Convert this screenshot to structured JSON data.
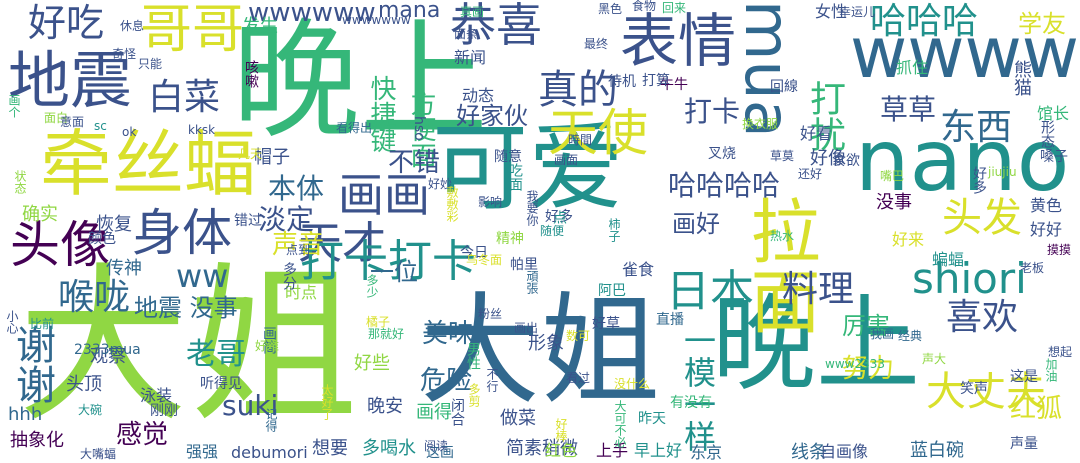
{
  "palette": {
    "purple": "#440154",
    "indigo": "#3b528b",
    "blue": "#31688e",
    "teal": "#21918c",
    "green": "#35b779",
    "lime": "#90d743",
    "yellow": "#d9e02b"
  },
  "words": [
    {
      "text": "大姐",
      "color": "lime"
    },
    {
      "text": "大姐",
      "color": "blue"
    },
    {
      "text": "晚上",
      "color": "green"
    },
    {
      "text": "晚上",
      "color": "teal"
    },
    {
      "text": "可爱",
      "color": "teal"
    },
    {
      "text": "nano",
      "color": "teal"
    },
    {
      "text": "wwww",
      "color": "blue"
    },
    {
      "text": "mua",
      "color": "blue"
    },
    {
      "text": "牵丝蝠",
      "color": "yellow"
    },
    {
      "text": "地震",
      "color": "indigo"
    },
    {
      "text": "拉面",
      "color": "yellow"
    },
    {
      "text": "表情",
      "color": "indigo"
    },
    {
      "text": "哥哥",
      "color": "yellow"
    },
    {
      "text": "头像",
      "color": "purple"
    },
    {
      "text": "身体",
      "color": "indigo"
    },
    {
      "text": "天才",
      "color": "indigo"
    },
    {
      "text": "画画",
      "color": "indigo"
    },
    {
      "text": "打卡打卡",
      "color": "teal"
    },
    {
      "text": "shiori",
      "color": "teal"
    },
    {
      "text": "头发",
      "color": "yellow"
    },
    {
      "text": "天使",
      "color": "yellow"
    },
    {
      "text": "恭喜",
      "color": "indigo"
    },
    {
      "text": "真的",
      "color": "indigo"
    },
    {
      "text": "好吃",
      "color": "indigo"
    },
    {
      "text": "白菜",
      "color": "indigo"
    },
    {
      "text": "日本",
      "color": "teal"
    },
    {
      "text": "料理",
      "color": "indigo"
    },
    {
      "text": "喜欢",
      "color": "indigo"
    },
    {
      "text": "大丈夫",
      "color": "yellow"
    },
    {
      "text": "哈哈哈",
      "color": "teal"
    },
    {
      "text": "东西",
      "color": "blue"
    },
    {
      "text": "打扰",
      "color": "green"
    },
    {
      "text": "谢谢",
      "color": "blue"
    },
    {
      "text": "喉咙",
      "color": "blue"
    },
    {
      "text": "一模一样",
      "color": "teal"
    },
    {
      "text": "ww",
      "color": "blue"
    },
    {
      "text": "wwwwww",
      "color": "indigo"
    },
    {
      "text": "mana",
      "color": "indigo"
    },
    {
      "text": "学友",
      "color": "yellow"
    },
    {
      "text": "快捷键",
      "color": "green"
    },
    {
      "text": "方便面",
      "color": "green"
    },
    {
      "text": "好家伙",
      "color": "indigo"
    },
    {
      "text": "打卡",
      "color": "indigo"
    },
    {
      "text": "草草",
      "color": "indigo"
    },
    {
      "text": "哈哈哈哈",
      "color": "indigo"
    },
    {
      "text": "本体",
      "color": "blue"
    },
    {
      "text": "不错",
      "color": "indigo"
    },
    {
      "text": "声音",
      "color": "yellow"
    },
    {
      "text": "淡定",
      "color": "indigo"
    },
    {
      "text": "老哥",
      "color": "teal"
    },
    {
      "text": "美味",
      "color": "blue"
    },
    {
      "text": "危险",
      "color": "blue"
    },
    {
      "text": "厉害",
      "color": "green"
    },
    {
      "text": "努力",
      "color": "yellow"
    },
    {
      "text": "红狐",
      "color": "yellow"
    },
    {
      "text": "suki",
      "color": "indigo"
    },
    {
      "text": "感觉",
      "color": "purple"
    },
    {
      "text": "地震 没事",
      "color": "blue"
    },
    {
      "text": "画好",
      "color": "indigo"
    },
    {
      "text": "一位",
      "color": "blue"
    },
    {
      "text": "头顶",
      "color": "indigo"
    },
    {
      "text": "恢复",
      "color": "indigo"
    },
    {
      "text": "确实",
      "color": "lime"
    },
    {
      "text": "观察",
      "color": "indigo"
    },
    {
      "text": "晚安",
      "color": "indigo"
    },
    {
      "text": "画得",
      "color": "green"
    },
    {
      "text": "做菜",
      "color": "indigo"
    },
    {
      "text": "形象",
      "color": "indigo"
    },
    {
      "text": "好些",
      "color": "lime"
    },
    {
      "text": "多喝水",
      "color": "teal"
    },
    {
      "text": "简素稍微",
      "color": "indigo"
    },
    {
      "text": "抽象化",
      "color": "purple"
    },
    {
      "text": "想要",
      "color": "indigo"
    },
    {
      "text": "强强",
      "color": "blue"
    },
    {
      "text": "debumori",
      "color": "indigo"
    },
    {
      "text": "线条",
      "color": "blue"
    },
    {
      "text": "蓝白碗",
      "color": "blue"
    },
    {
      "text": "上手",
      "color": "purple"
    },
    {
      "text": "早上好",
      "color": "teal"
    },
    {
      "text": "这画",
      "color": "blue"
    },
    {
      "text": "红色",
      "color": "lime"
    },
    {
      "text": "东京",
      "color": "blue"
    },
    {
      "text": "自画像",
      "color": "indigo"
    },
    {
      "text": "声量",
      "color": "indigo"
    },
    {
      "text": "hhh",
      "color": "blue"
    },
    {
      "text": "2333mua",
      "color": "blue"
    },
    {
      "text": "泳装",
      "color": "indigo"
    },
    {
      "text": "刚刚",
      "color": "indigo"
    },
    {
      "text": "大碗",
      "color": "teal"
    },
    {
      "text": "听得见",
      "color": "indigo"
    },
    {
      "text": "记得",
      "color": "blue"
    },
    {
      "text": "太好了",
      "color": "yellow"
    },
    {
      "text": "多剪",
      "color": "yellow"
    },
    {
      "text": "好棒",
      "color": "yellow"
    },
    {
      "text": "昨天",
      "color": "teal"
    },
    {
      "text": "有没有",
      "color": "green"
    },
    {
      "text": "大嘴蝠",
      "color": "indigo"
    },
    {
      "text": "这是",
      "color": "indigo"
    },
    {
      "text": "笑声",
      "color": "indigo"
    },
    {
      "text": "想起",
      "color": "indigo"
    },
    {
      "text": "加油",
      "color": "green"
    },
    {
      "text": "声大",
      "color": "lime"
    },
    {
      "text": "经典",
      "color": "blue"
    },
    {
      "text": "我画",
      "color": "blue"
    },
    {
      "text": "帽子",
      "color": "indigo"
    },
    {
      "text": "没事",
      "color": "purple"
    },
    {
      "text": "黄色",
      "color": "indigo"
    },
    {
      "text": "好好",
      "color": "indigo"
    },
    {
      "text": "好来",
      "color": "yellow"
    },
    {
      "text": "蝙蝠",
      "color": "teal"
    },
    {
      "text": "老板",
      "color": "indigo"
    },
    {
      "text": "摸摸",
      "color": "purple"
    },
    {
      "text": "雀食",
      "color": "indigo"
    },
    {
      "text": "今日",
      "color": "indigo"
    },
    {
      "text": "帕里",
      "color": "indigo"
    },
    {
      "text": "好多",
      "color": "indigo"
    },
    {
      "text": "吃面",
      "color": "teal"
    },
    {
      "text": "时点",
      "color": "lime"
    },
    {
      "text": "粉丝",
      "color": "indigo"
    },
    {
      "text": "阿巴",
      "color": "teal"
    },
    {
      "text": "直播",
      "color": "blue"
    },
    {
      "text": "好草",
      "color": "indigo"
    },
    {
      "text": "画出",
      "color": "indigo"
    },
    {
      "text": "比前",
      "color": "teal"
    },
    {
      "text": "小心",
      "color": "indigo"
    },
    {
      "text": "传神",
      "color": "blue"
    },
    {
      "text": "颜色",
      "color": "indigo"
    },
    {
      "text": "错过",
      "color": "indigo"
    },
    {
      "text": "叉烧",
      "color": "indigo"
    },
    {
      "text": "好像",
      "color": "indigo"
    },
    {
      "text": "好看",
      "color": "indigo"
    },
    {
      "text": "草莫",
      "color": "indigo"
    },
    {
      "text": "食欲",
      "color": "indigo"
    },
    {
      "text": "还好",
      "color": "indigo"
    },
    {
      "text": "嘴巴",
      "color": "lime"
    },
    {
      "text": "熊猫",
      "color": "indigo"
    },
    {
      "text": "馆长",
      "color": "green"
    },
    {
      "text": "抓住",
      "color": "green"
    },
    {
      "text": "回線",
      "color": "indigo"
    },
    {
      "text": "牛牛",
      "color": "purple"
    },
    {
      "text": "打算",
      "color": "indigo"
    },
    {
      "text": "动态",
      "color": "indigo"
    },
    {
      "text": "新闻",
      "color": "indigo"
    },
    {
      "text": "面条",
      "color": "indigo"
    },
    {
      "text": "食物",
      "color": "indigo"
    },
    {
      "text": "女性",
      "color": "indigo"
    },
    {
      "text": "幸运儿",
      "color": "indigo"
    },
    {
      "text": "发生",
      "color": "green"
    },
    {
      "text": "wwwwwww",
      "color": "indigo"
    },
    {
      "text": "回来",
      "color": "green"
    },
    {
      "text": "真画",
      "color": "green"
    },
    {
      "text": "黑色",
      "color": "indigo"
    },
    {
      "text": "休息",
      "color": "indigo"
    },
    {
      "text": "只能",
      "color": "indigo"
    },
    {
      "text": "奇怪",
      "color": "indigo"
    },
    {
      "text": "画个",
      "color": "green"
    },
    {
      "text": "sc",
      "color": "teal"
    },
    {
      "text": "ok",
      "color": "indigo"
    },
    {
      "text": "kksk",
      "color": "indigo"
    },
    {
      "text": "面白",
      "color": "lime"
    },
    {
      "text": "意面",
      "color": "indigo"
    },
    {
      "text": "看得出",
      "color": "blue"
    },
    {
      "text": "咳嗽",
      "color": "purple"
    },
    {
      "text": "hso",
      "color": "indigo"
    },
    {
      "text": "随意",
      "color": "indigo"
    },
    {
      "text": "画面",
      "color": "indigo"
    },
    {
      "text": "時間",
      "color": "indigo"
    },
    {
      "text": "好妙",
      "color": "indigo"
    },
    {
      "text": "影响",
      "color": "indigo"
    },
    {
      "text": "几天",
      "color": "yellow"
    },
    {
      "text": "状态",
      "color": "lime"
    },
    {
      "text": "换衣服",
      "color": "lime"
    },
    {
      "text": "待机",
      "color": "indigo"
    },
    {
      "text": "最终",
      "color": "indigo"
    },
    {
      "text": "形态",
      "color": "indigo"
    },
    {
      "text": "嗓子",
      "color": "indigo"
    },
    {
      "text": "好多",
      "color": "indigo"
    },
    {
      "text": "jiujiu",
      "color": "lime"
    },
    {
      "text": "随便",
      "color": "teal"
    },
    {
      "text": "点",
      "color": "teal"
    },
    {
      "text": "精神",
      "color": "lime"
    },
    {
      "text": "乌冬面",
      "color": "yellow"
    },
    {
      "text": "敷敷彩",
      "color": "yellow"
    },
    {
      "text": "我要你",
      "color": "indigo"
    },
    {
      "text": "柿子",
      "color": "teal"
    },
    {
      "text": "热水",
      "color": "green"
    },
    {
      "text": "多分",
      "color": "indigo"
    },
    {
      "text": "点到",
      "color": "indigo"
    },
    {
      "text": "多少",
      "color": "green"
    },
    {
      "text": "橘子",
      "color": "yellow"
    },
    {
      "text": "那就好",
      "color": "green"
    },
    {
      "text": "画简",
      "color": "blue"
    },
    {
      "text": "頑張",
      "color": "blue"
    },
    {
      "text": "好难",
      "color": "lime"
    },
    {
      "text": "数可",
      "color": "yellow"
    },
    {
      "text": "男性",
      "color": "green"
    },
    {
      "text": "不行",
      "color": "indigo"
    },
    {
      "text": "看过",
      "color": "indigo"
    },
    {
      "text": "闭合",
      "color": "indigo"
    },
    {
      "text": "没什么",
      "color": "yellow"
    },
    {
      "text": "阅读",
      "color": "indigo"
    },
    {
      "text": "www2333",
      "color": "green"
    },
    {
      "text": "大可不必",
      "color": "green"
    }
  ]
}
